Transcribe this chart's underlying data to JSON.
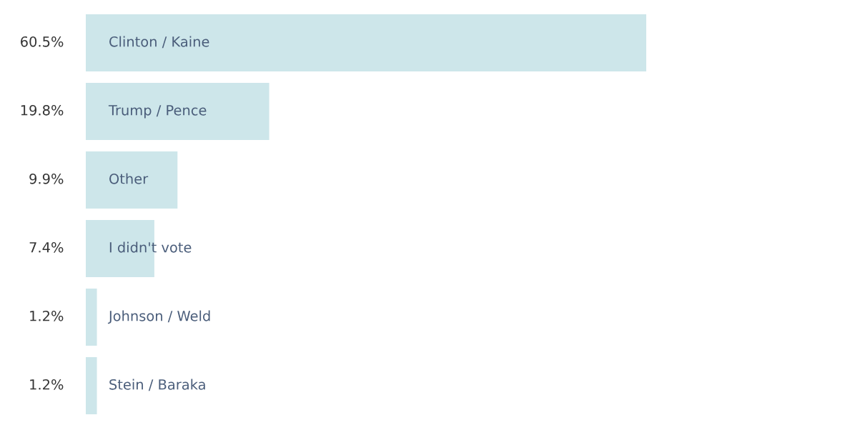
{
  "chart_data": {
    "type": "bar",
    "orientation": "horizontal",
    "categories": [
      "Clinton / Kaine",
      "Trump / Pence",
      "Other",
      "I didn't vote",
      "Johnson / Weld",
      "Stein / Baraka"
    ],
    "values": [
      60.5,
      19.8,
      9.9,
      7.4,
      1.2,
      1.2
    ],
    "value_labels": [
      "60.5%",
      "19.8%",
      "9.9%",
      "7.4%",
      "1.2%",
      "1.2%"
    ],
    "color": "#cde6ea"
  }
}
